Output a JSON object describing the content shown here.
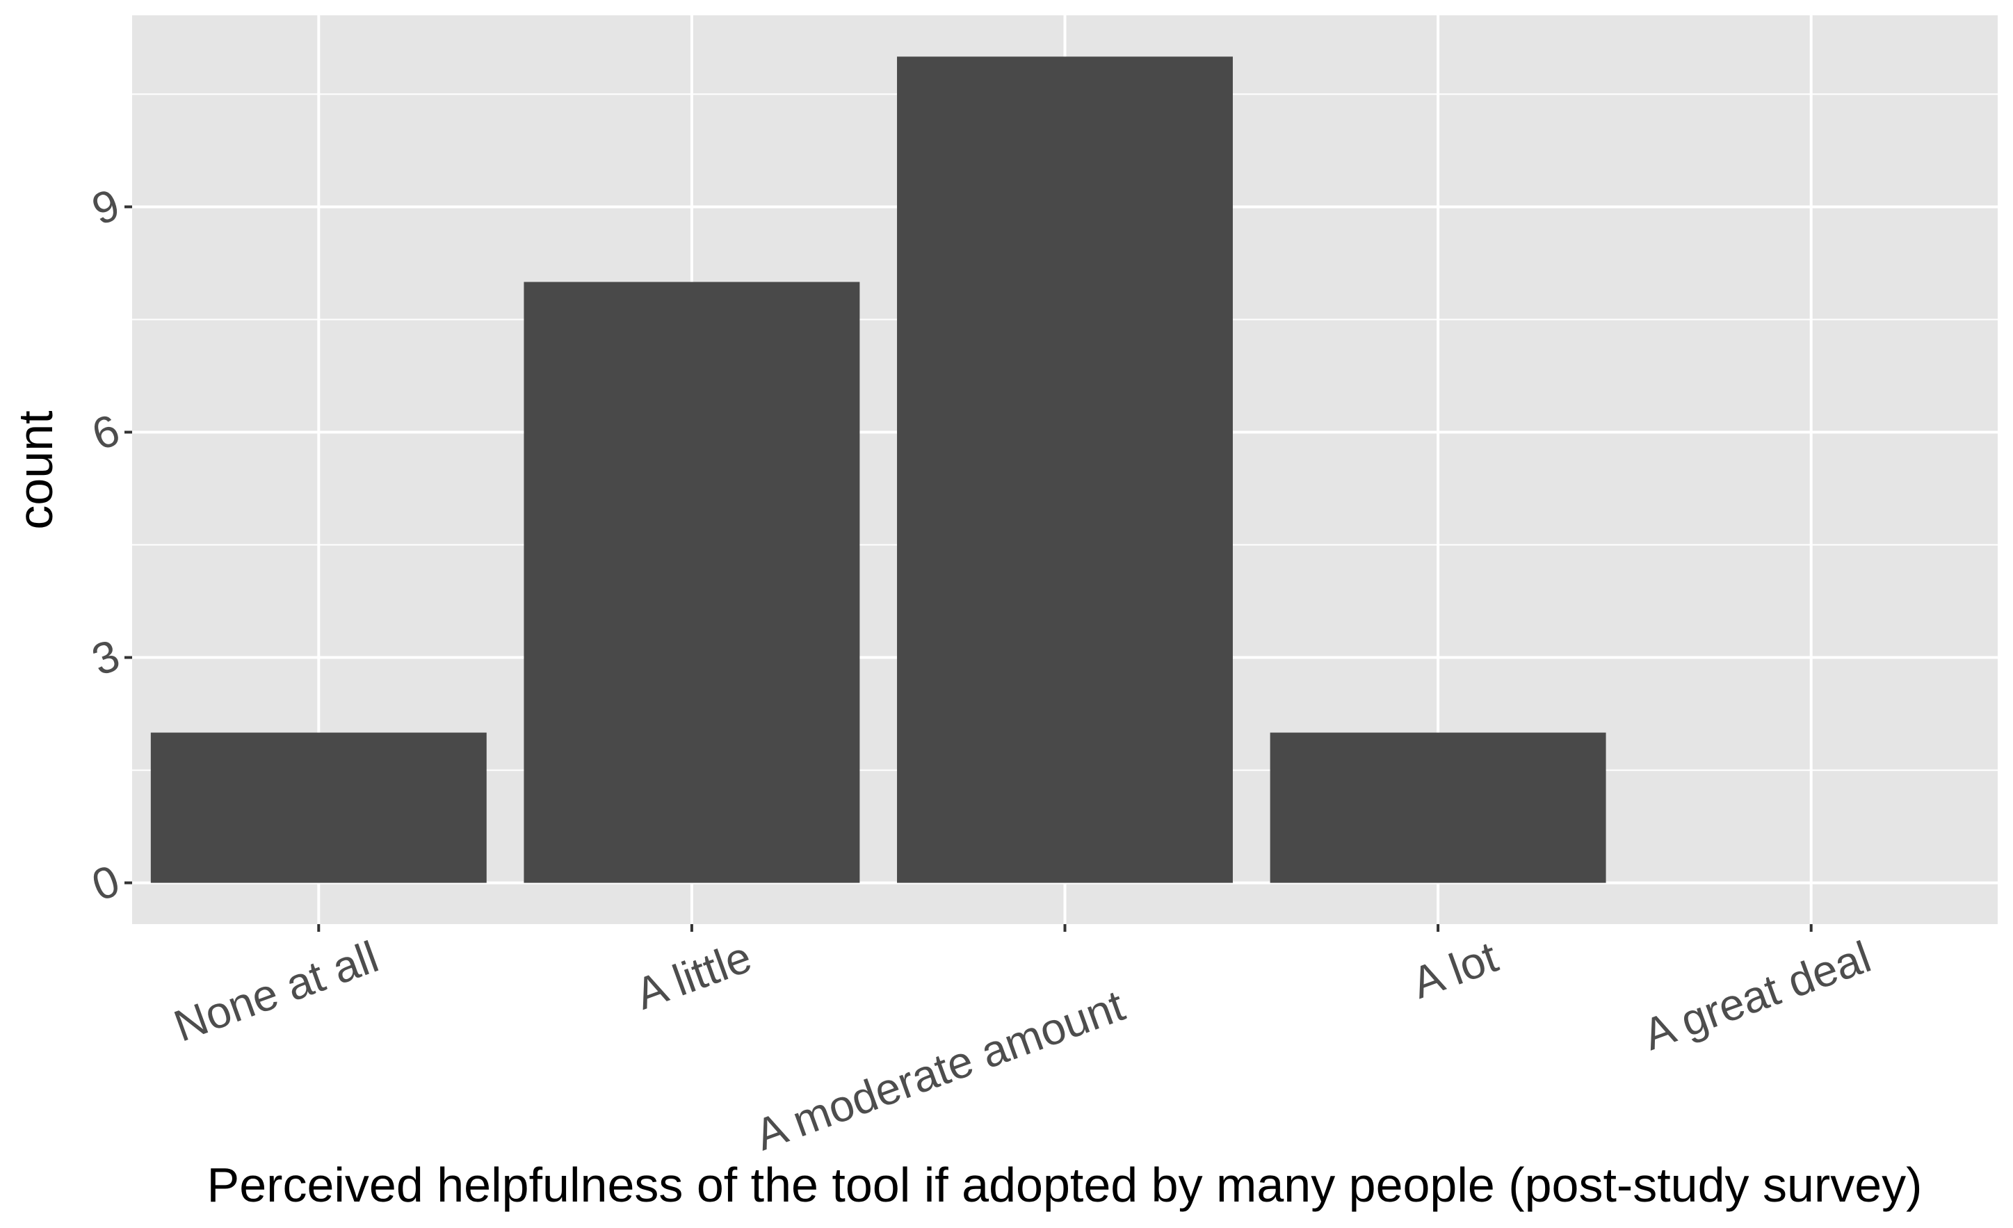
{
  "chart_data": {
    "type": "bar",
    "categories": [
      "None at all",
      "A little",
      "A moderate amount",
      "A lot",
      "A great deal"
    ],
    "values": [
      2,
      8,
      11,
      2,
      0
    ],
    "xlabel": "Perceived helpfulness of the tool if adopted by many people (post-study survey)",
    "ylabel": "count",
    "ylim": [
      -0.55,
      11.55
    ],
    "yticks": [
      0,
      3,
      6,
      9
    ],
    "grid": true,
    "legend": "none"
  },
  "colors": {
    "panel_background": "#e5e5e5",
    "grid_major": "#ffffff",
    "bar_fill": "#494949",
    "tick_text": "#4d4d4d",
    "title_text": "#000000"
  }
}
